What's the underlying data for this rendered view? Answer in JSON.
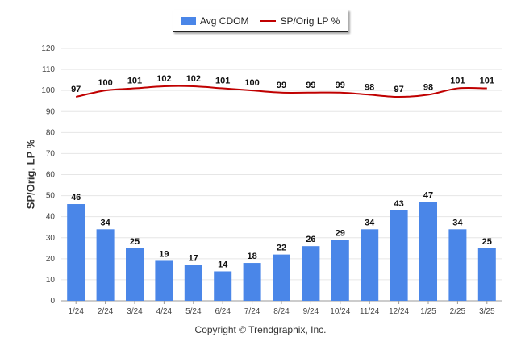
{
  "chart_data": {
    "type": "bar",
    "ylabel": "SP/Orig. LP %",
    "ylim": [
      0,
      120
    ],
    "yticks": [
      "0",
      "10",
      "20",
      "30",
      "40",
      "50",
      "60",
      "70",
      "80",
      "90",
      "100",
      "110",
      "120"
    ],
    "categories": [
      "1/24",
      "2/24",
      "3/24",
      "4/24",
      "5/24",
      "6/24",
      "7/24",
      "8/24",
      "9/24",
      "10/24",
      "11/24",
      "12/24",
      "1/25",
      "2/25",
      "3/25"
    ],
    "series": [
      {
        "name": "Avg CDOM",
        "kind": "bar",
        "color": "#4a86e8",
        "values": [
          46,
          34,
          25,
          19,
          17,
          14,
          18,
          22,
          26,
          29,
          34,
          43,
          47,
          34,
          25
        ]
      },
      {
        "name": "SP/Orig LP %",
        "kind": "line",
        "color": "#c00000",
        "values": [
          97,
          100,
          101,
          102,
          102,
          101,
          100,
          99,
          99,
          99,
          98,
          97,
          98,
          101,
          101
        ]
      }
    ],
    "grid": true,
    "legend": "top-center"
  },
  "footer": {
    "copyright": "Copyright © Trendgraphix, Inc."
  }
}
